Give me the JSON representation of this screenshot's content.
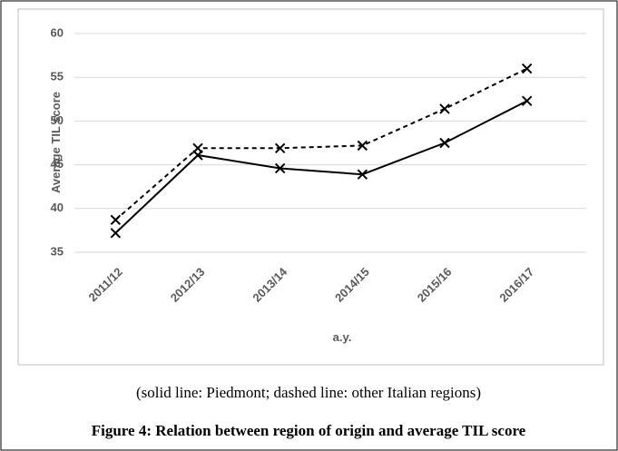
{
  "chart_data": {
    "type": "line",
    "y_label": "Average TIL score",
    "x_label": "a.y.",
    "categories": [
      "2011/12",
      "2012/13",
      "2013/14",
      "2014/15",
      "2015/16",
      "2016/17"
    ],
    "series": [
      {
        "color": "#000000",
        "dash": "solid",
        "values": [
          37.2,
          46.1,
          44.6,
          43.9,
          47.5,
          52.3
        ]
      },
      {
        "color": "#000000",
        "dash": "dashed",
        "values": [
          38.7,
          46.9,
          46.9,
          47.2,
          51.4,
          56.0
        ]
      }
    ],
    "ylim": [
      35,
      60
    ],
    "yticks": [
      35,
      40,
      45,
      50,
      55,
      60
    ],
    "grid": true
  },
  "note": "(solid line: Piedmont; dashed line: other Italian regions)",
  "caption": "Figure 4: Relation between region of origin and average TIL score"
}
